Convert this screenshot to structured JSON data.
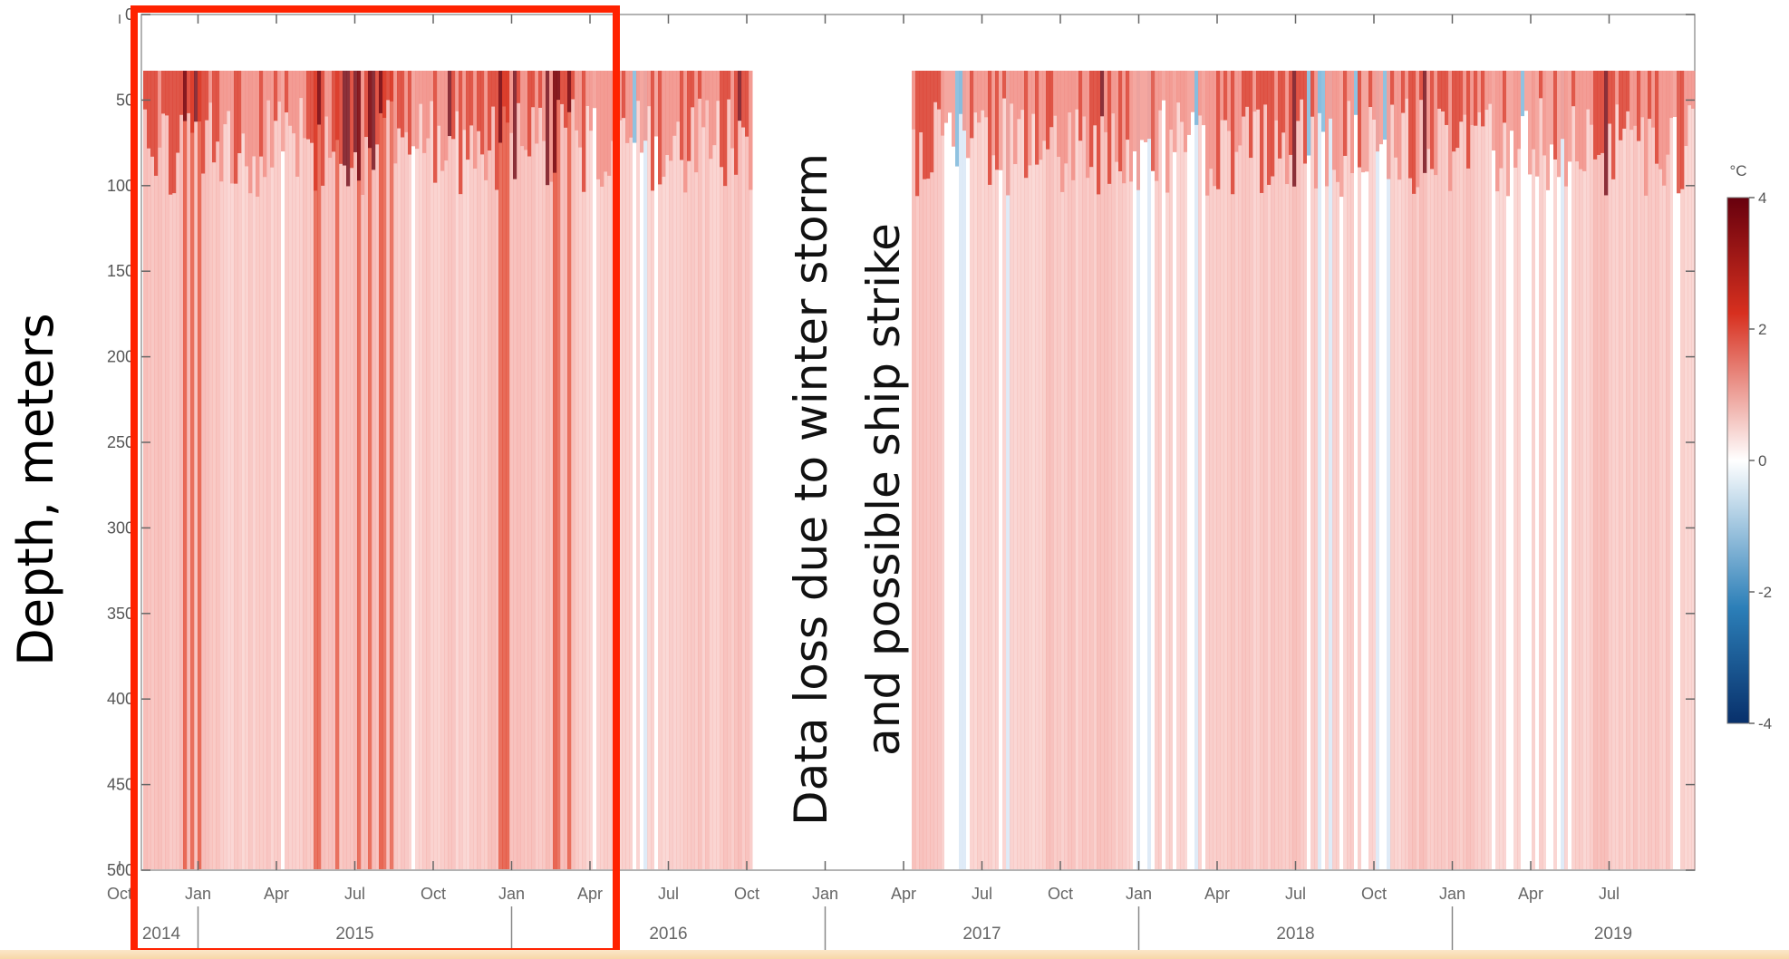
{
  "chart_data": {
    "type": "heatmap",
    "ylabel": "Depth, meters",
    "ylim": [
      0,
      500
    ],
    "y_inverted": true,
    "yticks": [
      0,
      50,
      100,
      150,
      200,
      250,
      300,
      350,
      400,
      450,
      500
    ],
    "x_range": [
      "2014-10",
      "2019-09"
    ],
    "x_month_ticks": [
      "Oct",
      "Jan",
      "Apr",
      "Jul",
      "Oct",
      "Jan",
      "Apr",
      "Jul",
      "Oct",
      "Jan",
      "Apr",
      "Jul",
      "Oct",
      "Jan",
      "Apr",
      "Jul",
      "Oct",
      "Jan",
      "Apr",
      "Jul"
    ],
    "x_year_labels": [
      "2014",
      "2015",
      "2016",
      "2017",
      "2018",
      "2019"
    ],
    "colorbar": {
      "unit": "°C",
      "range": [
        -4,
        4
      ],
      "ticks": [
        4,
        2,
        0,
        -2,
        -4
      ],
      "colors": {
        "max": "#67000d",
        "warm": "#d7301f",
        "zero": "#ffffff",
        "cool": "#2c7fb8",
        "min": "#08306b"
      }
    },
    "data_gap": [
      "2016-10",
      "2017-04"
    ],
    "annotation": [
      "Data loss due to winter storm",
      "and possible ship strike"
    ],
    "highlight": {
      "from": "2014-10",
      "to": "2016-04",
      "color": "#ff2200"
    }
  }
}
